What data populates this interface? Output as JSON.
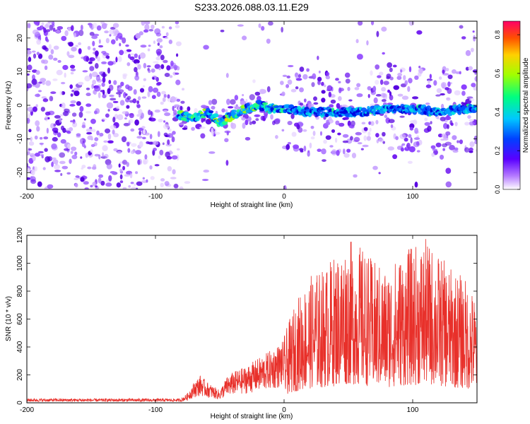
{
  "title": "S233.2026.088.03.11.E29",
  "colors": {
    "snr_line": "#e8302a",
    "axis": "#000000"
  },
  "chart_data": [
    {
      "type": "heatmap",
      "xlabel": "Height of straight line (km)",
      "ylabel": "Frequency (Hz)",
      "xlim": [
        -200,
        150
      ],
      "ylim": [
        -25,
        25
      ],
      "x_ticks": [
        -200,
        -100,
        0,
        100
      ],
      "y_ticks": [
        -20,
        -10,
        0,
        10,
        20
      ],
      "colorbar": {
        "label": "Normalized spectral amplitude",
        "range": [
          0,
          0.87
        ],
        "ticks": [
          0.0,
          0.2,
          0.4,
          0.6,
          0.8
        ],
        "colormap": "rainbow"
      },
      "signal_ridge": {
        "x": [
          -80,
          -70,
          -60,
          -50,
          -45,
          -40,
          -30,
          -20,
          -10,
          0,
          20,
          40,
          60,
          80,
          100,
          120,
          140,
          150
        ],
        "y": [
          -3,
          -4,
          -2,
          -5,
          -4,
          -3,
          -1,
          0,
          -1,
          -1,
          -2,
          -2,
          -2,
          -1,
          -1,
          -2,
          -1,
          -1
        ]
      }
    },
    {
      "type": "line",
      "xlabel": "Height of straight line (km)",
      "ylabel": "SNR (10 * v/v)",
      "xlim": [
        -200,
        150
      ],
      "ylim": [
        0,
        1200
      ],
      "x_ticks": [
        -200,
        -100,
        0,
        100
      ],
      "y_ticks": [
        0,
        200,
        400,
        600,
        800,
        1000,
        1200
      ],
      "envelope": {
        "x": [
          -200,
          -80,
          -75,
          -70,
          -65,
          -60,
          -55,
          -50,
          -45,
          -40,
          -30,
          -20,
          -10,
          0,
          10,
          20,
          30,
          40,
          50,
          60,
          70,
          80,
          90,
          100,
          110,
          120,
          130,
          140,
          150
        ],
        "y": [
          30,
          30,
          70,
          150,
          200,
          150,
          120,
          90,
          180,
          220,
          260,
          320,
          380,
          450,
          700,
          850,
          900,
          1000,
          1100,
          1050,
          950,
          900,
          1000,
          1050,
          1100,
          1000,
          900,
          850,
          700
        ]
      }
    }
  ]
}
